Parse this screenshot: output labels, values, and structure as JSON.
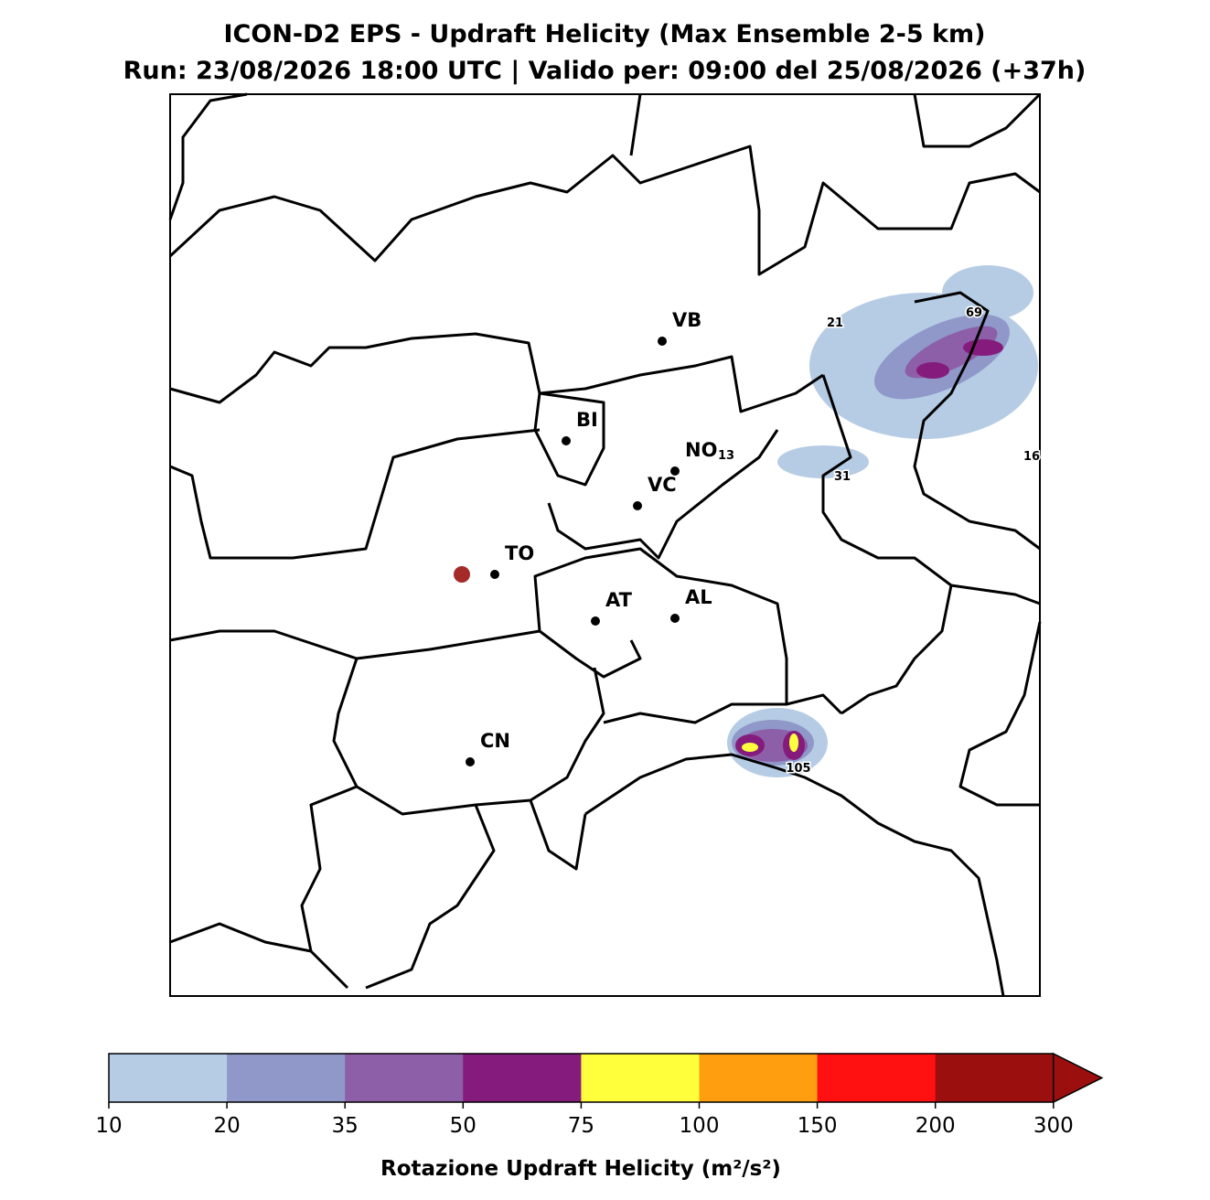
{
  "header": {
    "title": "ICON-D2 EPS - Updraft Helicity (Max Ensemble 2-5 km)",
    "subtitle": "Run: 23/08/2026 18:00 UTC | Valido per: 09:00 del 25/08/2026 (+37h)"
  },
  "map": {
    "cities": [
      "VB",
      "BI",
      "NO",
      "VC",
      "TO",
      "AT",
      "AL",
      "CN"
    ],
    "max_labels": [
      21,
      69,
      13,
      31,
      16,
      105
    ]
  },
  "colorbar": {
    "bounds": [
      10,
      20,
      35,
      50,
      75,
      100,
      150,
      200,
      300
    ],
    "colors": [
      "#b5cce4",
      "#8f98c8",
      "#8d5fa8",
      "#841b7d",
      "#ffff3c",
      "#ff9e0f",
      "#ff1111",
      "#9b0f0f"
    ],
    "label": "Rotazione Updraft Helicity (m²/s²)",
    "extend": "max"
  }
}
